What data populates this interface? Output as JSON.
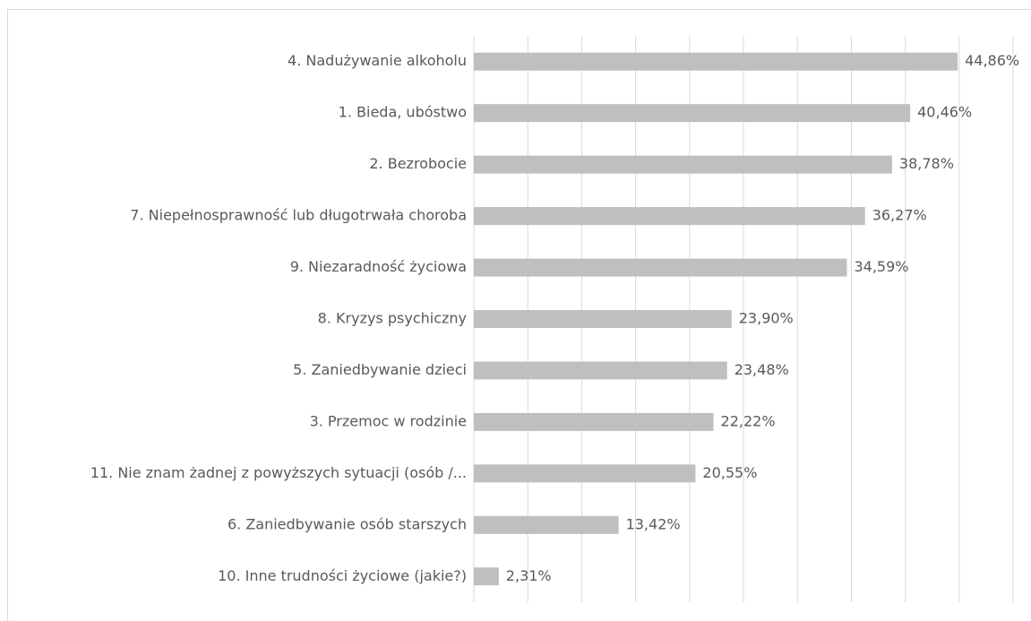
{
  "chart_data": {
    "type": "bar",
    "orientation": "horizontal",
    "categories": [
      "4. Nadużywanie alkoholu",
      "1. Bieda, ubóstwo",
      "2. Bezrobocie",
      "7. Niepełnosprawność lub długotrwała choroba",
      "9. Niezaradność życiowa",
      "8. Kryzys psychiczny",
      "5. Zaniedbywanie dzieci",
      "3. Przemoc w rodzinie",
      "11. Nie znam żadnej z powyższych sytuacji (osób /...",
      "6. Zaniedbywanie osób starszych",
      "10. Inne trudności życiowe (jakie?)"
    ],
    "values": [
      44.86,
      40.46,
      38.78,
      36.27,
      34.59,
      23.9,
      23.48,
      22.22,
      20.55,
      13.42,
      2.31
    ],
    "value_labels": [
      "44,86%",
      "40,46%",
      "38,78%",
      "36,27%",
      "34,59%",
      "23,90%",
      "23,48%",
      "22,22%",
      "20,55%",
      "13,42%",
      "2,31%"
    ],
    "color": "#bfbfbf",
    "xlim": [
      0,
      50
    ],
    "xticks": [
      0,
      5,
      10,
      15,
      20,
      25,
      30,
      35,
      40,
      45,
      50
    ],
    "grid": true
  }
}
